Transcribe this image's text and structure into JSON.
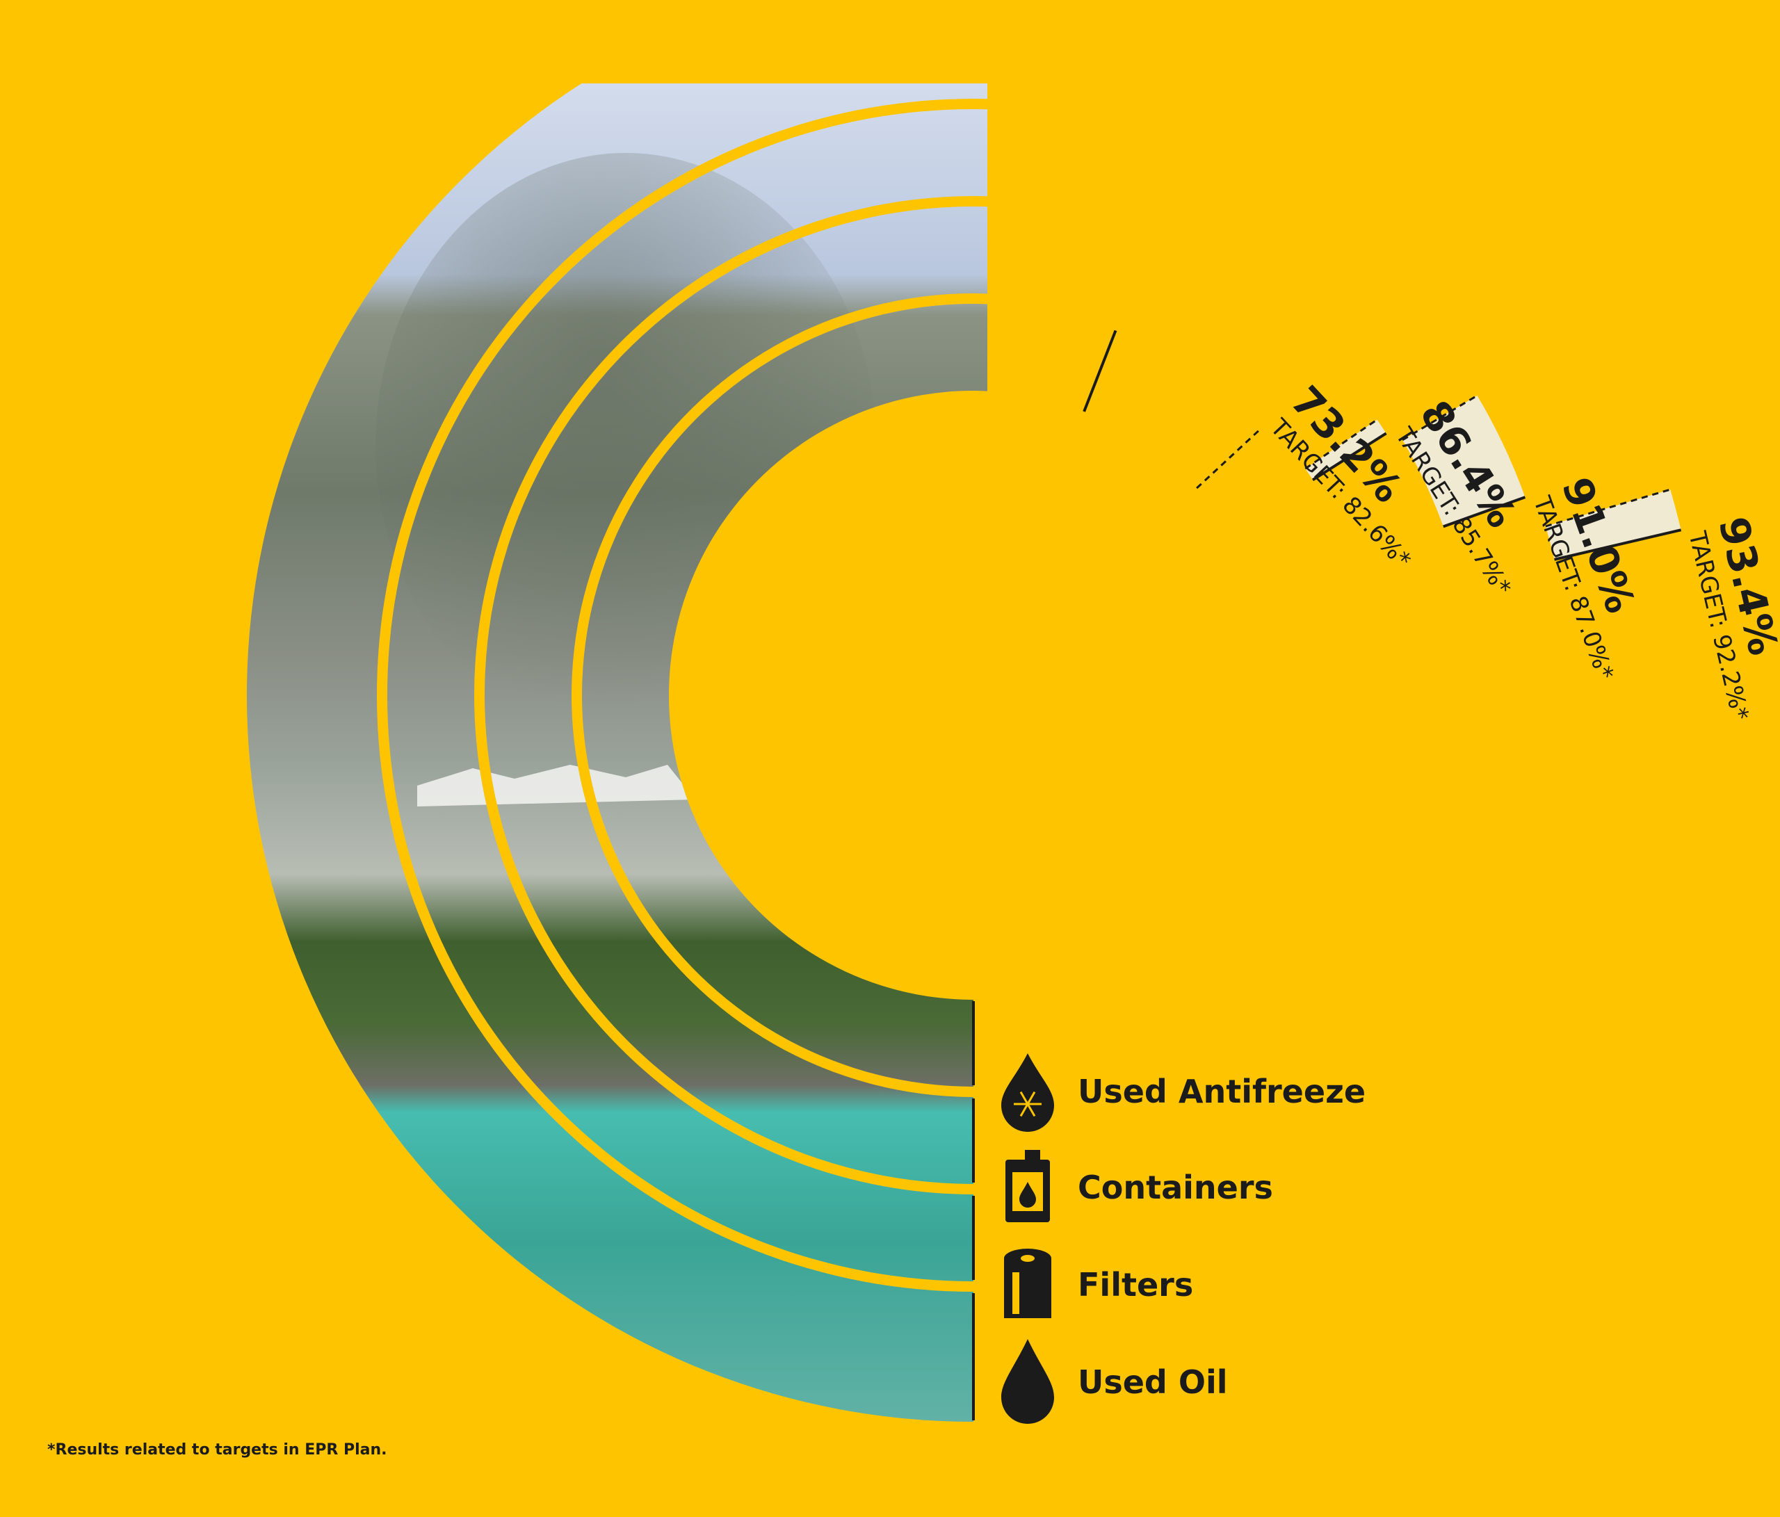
{
  "chart_data": {
    "type": "radial-bar",
    "max": 100,
    "series": [
      {
        "name": "Used Oil",
        "value": 93.4,
        "value_label": "93.4%",
        "target": 92.2,
        "target_label": "TARGET: 92.2%*",
        "icon": "oil-drop-icon"
      },
      {
        "name": "Filters",
        "value": 91.0,
        "value_label": "91.0%",
        "target": 87.0,
        "target_label": "TARGET: 87.0%*",
        "icon": "filter-icon"
      },
      {
        "name": "Containers",
        "value": 86.4,
        "value_label": "86.4%",
        "target": 85.7,
        "target_label": "TARGET: 85.7%*",
        "icon": "container-icon"
      },
      {
        "name": "Used Antifreeze",
        "value": 73.2,
        "value_label": "73.2%",
        "target": 82.6,
        "target_label": "TARGET: 82.6%*",
        "icon": "antifreeze-icon"
      }
    ],
    "footnote": "*Results related to targets in EPR Plan."
  },
  "colors": {
    "background": "#FFC400",
    "text": "#1b1b1b",
    "sky": "#c9d5e8",
    "rock": "#7f8a7c",
    "forest": "#3f5f2e",
    "lake": "#3fb2a2",
    "gap": "#eef1f7"
  }
}
